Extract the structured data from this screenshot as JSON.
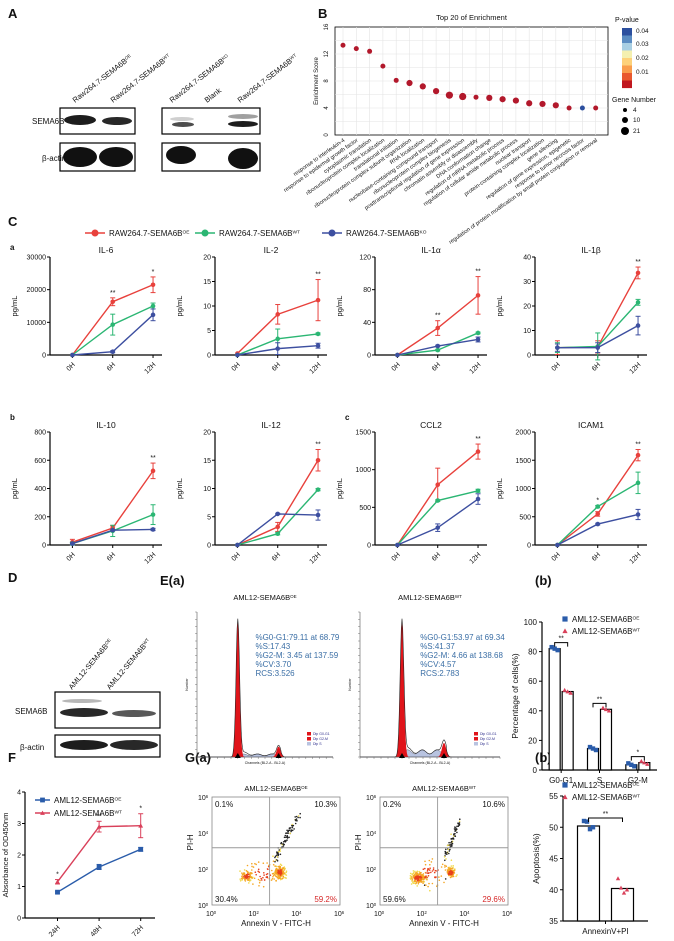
{
  "panel_labels": {
    "A": "A",
    "B": "B",
    "C": "C",
    "Ca": "a",
    "Cb": "b",
    "Cc": "c",
    "D": "D",
    "Ea": "E(a)",
    "Eb": "(b)",
    "F": "F",
    "Ga": "G(a)",
    "Gb": "(b)"
  },
  "colors": {
    "OE_C": "#e8413c",
    "WT_C": "#2bb673",
    "KO_C": "#3d4fa0",
    "OE": "#2a5caa",
    "WT": "#d9405a",
    "sig": "#b2182b",
    "nonsig": "#2c4f9e"
  },
  "blot_A": {
    "lanes": [
      {
        "name": "Raw264.7-SEMA6B",
        "sup": "OE"
      },
      {
        "name": "Raw264.7-SEMA6B",
        "sup": "WT"
      },
      {
        "name": "Raw264.7-SEMA6B",
        "sup": "KO"
      },
      {
        "name": "Blank",
        "sup": ""
      },
      {
        "name": "Raw264.7-SEMA6B",
        "sup": "WT"
      }
    ],
    "rows": [
      "SEMA6B",
      "β-actin"
    ]
  },
  "legend_C": [
    {
      "group": "OE_C",
      "name": "RAW264.7-SEMA6B",
      "sup": "OE"
    },
    {
      "group": "WT_C",
      "name": "RAW264.7-SEMA6B",
      "sup": "WT"
    },
    {
      "group": "KO_C",
      "name": "RAW264.7-SEMA6B",
      "sup": "KO"
    }
  ],
  "blot_D": {
    "lanes": [
      {
        "name": "AML12-SEMA6B",
        "sup": "OE"
      },
      {
        "name": "AML12-SEMA6B",
        "sup": "WT"
      }
    ],
    "rows": [
      "SEMA6B",
      "β-actin"
    ]
  },
  "histograms": [
    {
      "title": "AML12-SEMA6B",
      "sup": "OE",
      "lines": [
        "%G0-G1:79.11 at 68.79",
        "%S:17.43",
        "%G2-M: 3.45 at 137.59",
        "%CV:3.70",
        "RCS:3.526"
      ],
      "legend": [
        "Dip G0-G1",
        "Dip G2-M",
        "Dip S"
      ],
      "ylabel": "Number",
      "xlabel": "Channels (BL2-A - BL2-A)",
      "g1": 79.11,
      "s": 17.43,
      "g2m": 3.45
    },
    {
      "title": "AML12-SEMA6B",
      "sup": "WT",
      "lines": [
        "%G0-G1:53.97 at 69.34",
        "%S:41.37",
        "%G2-M: 4.66 at 138.68",
        "%CV:4.57",
        "RCS:2.783"
      ],
      "legend": [
        "Dip G0-G1",
        "Dip G2-M",
        "Dip S"
      ],
      "ylabel": "Number",
      "xlabel": "Channels (BL2-A - BL2-A)",
      "g1": 53.97,
      "s": 41.37,
      "g2m": 4.66
    }
  ],
  "legend_EF": [
    {
      "group": "OE",
      "name": "AML12-SEMA6B",
      "sup": "OE"
    },
    {
      "group": "WT",
      "name": "AML12-SEMA6B",
      "sup": "WT"
    }
  ],
  "flow": {
    "xlabel": "Annexin V - FITC-H",
    "ylabel": "PI-H",
    "tick_base": "10",
    "tick_exps": [
      "0",
      "2",
      "4",
      "6"
    ],
    "plots": [
      {
        "title": "AML12-SEMA6B",
        "sup": "OE",
        "q_ul": "0.1%",
        "q_ur": "10.3%",
        "q_ll": "30.4%",
        "q_lr": "59.2%"
      },
      {
        "title": "AML12-SEMA6B",
        "sup": "WT",
        "q_ul": "0.2%",
        "q_ur": "10.6%",
        "q_ll": "59.6%",
        "q_lr": "29.6%"
      }
    ]
  },
  "chart_data": [
    {
      "type": "scatter",
      "title": "Top 20 of  Enrichment",
      "ylabel": "Enrichment Score",
      "ylim": [
        0,
        16
      ],
      "yticks": [
        0,
        4,
        8,
        12,
        16
      ],
      "categories": [
        "response to interleukin-4",
        "response to epidermal growth factor",
        "cytoplasmic translation",
        "ribonucleoprotein complex localization",
        "translational initiation",
        "ribonucleoprotein complex subunit organization",
        "RNA localization",
        "nucleobase-containing compound transport",
        "ribonucleoprotein complex biogenesis",
        "posttranscriptional regulation of gene expression",
        "chromatin assembly or disassembly",
        "DNA conformation change",
        "regulation of mRNA metabolic process",
        "regulation of cellular amide metabolic process",
        "nuclear transport",
        "protein-containing complex localization",
        "gene silencing",
        "regulation of gene expression, epigenetic",
        "response to tumor necrosis factor",
        "regulation of protein modification by small protein conjugation or removal"
      ],
      "values": [
        13.3,
        12.8,
        12.4,
        10.2,
        8.1,
        7.7,
        7.2,
        6.5,
        5.9,
        5.7,
        5.6,
        5.5,
        5.3,
        5.1,
        4.7,
        4.6,
        4.4,
        4.0,
        4.0,
        4.0
      ],
      "p_values": [
        0.002,
        0.002,
        0.002,
        0.003,
        0.004,
        0.004,
        0.004,
        0.005,
        0.005,
        0.005,
        0.005,
        0.005,
        0.005,
        0.005,
        0.006,
        0.006,
        0.006,
        0.006,
        0.04,
        0.006
      ],
      "gene_numbers": [
        4,
        4,
        6,
        4,
        6,
        12,
        8,
        8,
        14,
        14,
        6,
        8,
        8,
        10,
        10,
        8,
        8,
        6,
        4,
        6
      ],
      "legend": {
        "color_title": "P-value",
        "color_ticks": [
          "0.04",
          "0.03",
          "0.02",
          "0.01"
        ],
        "size_title": "Gene Number",
        "size_ticks": [
          "4",
          "10",
          "21"
        ]
      }
    },
    {
      "type": "line",
      "title": "IL-6",
      "ylabel": "pg/mL",
      "categories": [
        "0H",
        "6H",
        "12H"
      ],
      "ylim": [
        0,
        30000
      ],
      "yticks": [
        0,
        10000,
        20000,
        30000
      ],
      "series": [
        {
          "group": "OE_C",
          "values": [
            0,
            16300,
            21500
          ],
          "err": [
            0,
            1200,
            2400
          ]
        },
        {
          "group": "WT_C",
          "values": [
            0,
            9300,
            15000
          ],
          "err": [
            0,
            3200,
            900
          ]
        },
        {
          "group": "KO_C",
          "values": [
            0,
            1000,
            12300
          ],
          "err": [
            0,
            300,
            1800
          ]
        }
      ],
      "sig": [
        {
          "index": 1,
          "label": "**"
        },
        {
          "index": 2,
          "label": "*"
        }
      ]
    },
    {
      "type": "line",
      "title": "IL-2",
      "ylabel": "pg/mL",
      "categories": [
        "0H",
        "6H",
        "12H"
      ],
      "ylim": [
        0,
        20
      ],
      "yticks": [
        0,
        5,
        10,
        15,
        20
      ],
      "series": [
        {
          "group": "OE_C",
          "values": [
            0.3,
            8.3,
            11.2
          ],
          "err": [
            0,
            2,
            4.2
          ]
        },
        {
          "group": "WT_C",
          "values": [
            0,
            3.3,
            4.3
          ],
          "err": [
            0,
            2,
            0.2
          ]
        },
        {
          "group": "KO_C",
          "values": [
            0,
            1.3,
            1.9
          ],
          "err": [
            0,
            1.2,
            0.5
          ]
        }
      ],
      "sig": [
        {
          "index": 2,
          "label": "**"
        }
      ]
    },
    {
      "type": "line",
      "title": "IL-1α",
      "ylabel": "pg/mL",
      "categories": [
        "0H",
        "6H",
        "12H"
      ],
      "ylim": [
        0,
        120
      ],
      "yticks": [
        0,
        40,
        80,
        120
      ],
      "series": [
        {
          "group": "OE_C",
          "values": [
            0,
            33,
            73
          ],
          "err": [
            0,
            9,
            23
          ]
        },
        {
          "group": "WT_C",
          "values": [
            0,
            6,
            27
          ],
          "err": [
            0,
            1,
            1
          ]
        },
        {
          "group": "KO_C",
          "values": [
            0,
            11,
            19
          ],
          "err": [
            0,
            1,
            3
          ]
        }
      ],
      "sig": [
        {
          "index": 1,
          "label": "**"
        },
        {
          "index": 2,
          "label": "**"
        }
      ]
    },
    {
      "type": "line",
      "title": "IL-1β",
      "ylabel": "pg/mL",
      "categories": [
        "0H",
        "6H",
        "12H"
      ],
      "ylim": [
        0,
        40
      ],
      "yticks": [
        0,
        10,
        20,
        30,
        40
      ],
      "series": [
        {
          "group": "OE_C",
          "values": [
            3,
            3.3,
            33.5
          ],
          "err": [
            2.8,
            2.5,
            2.4
          ]
        },
        {
          "group": "WT_C",
          "values": [
            3,
            3.5,
            21.5
          ],
          "err": [
            2,
            5.5,
            1.2
          ]
        },
        {
          "group": "KO_C",
          "values": [
            3,
            3,
            12
          ],
          "err": [
            1.5,
            2,
            3.8
          ]
        }
      ],
      "sig": [
        {
          "index": 2,
          "label": "**"
        }
      ]
    },
    {
      "type": "line",
      "title": "IL-10",
      "ylabel": "pg/mL",
      "categories": [
        "0H",
        "6H",
        "12H"
      ],
      "ylim": [
        0,
        800
      ],
      "yticks": [
        0,
        200,
        400,
        600,
        800
      ],
      "series": [
        {
          "group": "OE_C",
          "values": [
            20,
            120,
            525
          ],
          "err": [
            20,
            15,
            55
          ]
        },
        {
          "group": "WT_C",
          "values": [
            10,
            100,
            215
          ],
          "err": [
            10,
            40,
            70
          ]
        },
        {
          "group": "KO_C",
          "values": [
            10,
            105,
            110
          ],
          "err": [
            5,
            5,
            8
          ]
        }
      ],
      "sig": [
        {
          "index": 2,
          "label": "**"
        }
      ]
    },
    {
      "type": "line",
      "title": "IL-12",
      "ylabel": "pg/mL",
      "categories": [
        "0H",
        "6H",
        "12H"
      ],
      "ylim": [
        0,
        20
      ],
      "yticks": [
        0,
        5,
        10,
        15,
        20
      ],
      "series": [
        {
          "group": "OE_C",
          "values": [
            0,
            3.2,
            15
          ],
          "err": [
            0,
            0.8,
            1.9
          ]
        },
        {
          "group": "WT_C",
          "values": [
            0,
            2,
            9.8
          ],
          "err": [
            0,
            0.2,
            0.2
          ]
        },
        {
          "group": "KO_C",
          "values": [
            0,
            5.5,
            5.3
          ],
          "err": [
            0,
            0.1,
            0.9
          ]
        }
      ],
      "sig": [
        {
          "index": 2,
          "label": "**"
        }
      ]
    },
    {
      "type": "line",
      "title": "CCL2",
      "ylabel": "pg/mL",
      "categories": [
        "0H",
        "6H",
        "12H"
      ],
      "ylim": [
        0,
        1500
      ],
      "yticks": [
        0,
        500,
        1000,
        1500
      ],
      "series": [
        {
          "group": "OE_C",
          "values": [
            0,
            800,
            1240
          ],
          "err": [
            0,
            220,
            100
          ]
        },
        {
          "group": "WT_C",
          "values": [
            0,
            590,
            720
          ],
          "err": [
            0,
            10,
            20
          ]
        },
        {
          "group": "KO_C",
          "values": [
            0,
            230,
            610
          ],
          "err": [
            0,
            50,
            70
          ]
        }
      ],
      "sig": [
        {
          "index": 2,
          "label": "**"
        }
      ]
    },
    {
      "type": "line",
      "title": "ICAM1",
      "ylabel": "pg/mL",
      "categories": [
        "0H",
        "6H",
        "12H"
      ],
      "ylim": [
        0,
        2000
      ],
      "yticks": [
        0,
        500,
        1000,
        1500,
        2000
      ],
      "series": [
        {
          "group": "OE_C",
          "values": [
            0,
            550,
            1590
          ],
          "err": [
            0,
            40,
            100
          ]
        },
        {
          "group": "WT_C",
          "values": [
            0,
            680,
            1100
          ],
          "err": [
            0,
            20,
            190
          ]
        },
        {
          "group": "KO_C",
          "values": [
            0,
            370,
            540
          ],
          "err": [
            0,
            15,
            90
          ]
        }
      ],
      "sig": [
        {
          "index": 1,
          "label": "*"
        },
        {
          "index": 2,
          "label": "**"
        }
      ]
    },
    {
      "type": "bar",
      "title": "",
      "ylabel": "Percentage of cells(%)",
      "categories": [
        "G0-G1",
        "S",
        "G2-M"
      ],
      "ylim": [
        0,
        100
      ],
      "yticks": [
        0,
        20,
        40,
        60,
        80,
        100
      ],
      "series": [
        {
          "group": "OE",
          "values": [
            82,
            14.5,
            3.5
          ]
        },
        {
          "group": "WT",
          "values": [
            53,
            41,
            5
          ]
        }
      ],
      "sig": [
        {
          "index": 0,
          "label": "**"
        },
        {
          "index": 1,
          "label": "**"
        },
        {
          "index": 2,
          "label": "*"
        }
      ]
    },
    {
      "type": "line",
      "title": "",
      "ylabel": "Absorbance of OD450nm",
      "categories": [
        "24H",
        "48H",
        "72H"
      ],
      "ylim": [
        0,
        4
      ],
      "yticks": [
        0,
        1,
        2,
        3,
        4
      ],
      "series": [
        {
          "group": "OE",
          "values": [
            0.82,
            1.62,
            2.18
          ],
          "err": [
            0.03,
            0.08,
            0.06
          ]
        },
        {
          "group": "WT",
          "values": [
            1.15,
            2.9,
            2.93
          ],
          "err": [
            0.07,
            0.17,
            0.38
          ]
        }
      ],
      "sig": [
        {
          "index": 0,
          "label": "*"
        },
        {
          "index": 1,
          "label": "**"
        },
        {
          "index": 2,
          "label": "*"
        }
      ]
    },
    {
      "type": "bar",
      "title": "",
      "ylabel": "Apoptosis(%)",
      "categories": [
        "AnnexinV+PI"
      ],
      "ylim": [
        35,
        55
      ],
      "yticks": [
        35,
        40,
        45,
        50,
        55
      ],
      "series": [
        {
          "group": "OE",
          "values": [
            50.2
          ],
          "replicates": [
            51.0,
            50.9,
            49.7,
            50.0
          ]
        },
        {
          "group": "WT",
          "values": [
            40.2
          ],
          "replicates": [
            41.8,
            40.3,
            39.5,
            40.0
          ]
        }
      ],
      "sig": [
        {
          "index": 0,
          "label": "**"
        }
      ]
    }
  ]
}
